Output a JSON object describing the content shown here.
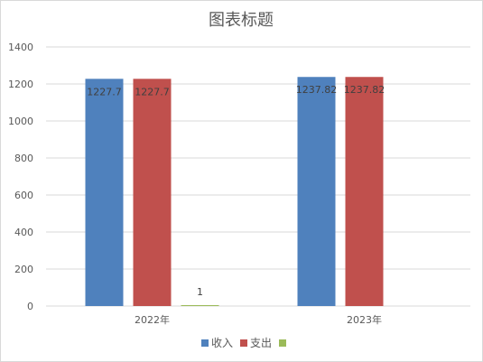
{
  "chart_data": {
    "type": "bar",
    "title": "图表标题",
    "categories": [
      "2022年",
      "2023年"
    ],
    "series": [
      {
        "name": "收入",
        "color": "#4f81bd",
        "values": [
          1227.7,
          1237.82
        ],
        "labels": [
          "1227.7",
          "1237.82"
        ]
      },
      {
        "name": "支出",
        "color": "#c0504d",
        "values": [
          1227.7,
          1237.82
        ],
        "labels": [
          "1227.7",
          "1237.82"
        ]
      },
      {
        "name": "",
        "color": "#9bbb59",
        "values": [
          1,
          null
        ],
        "labels": [
          "1",
          ""
        ]
      }
    ],
    "ylim": [
      0,
      1400
    ],
    "yticks": [
      0,
      200,
      400,
      600,
      800,
      1000,
      1200,
      1400
    ],
    "grid": true,
    "legend": "bottom"
  }
}
